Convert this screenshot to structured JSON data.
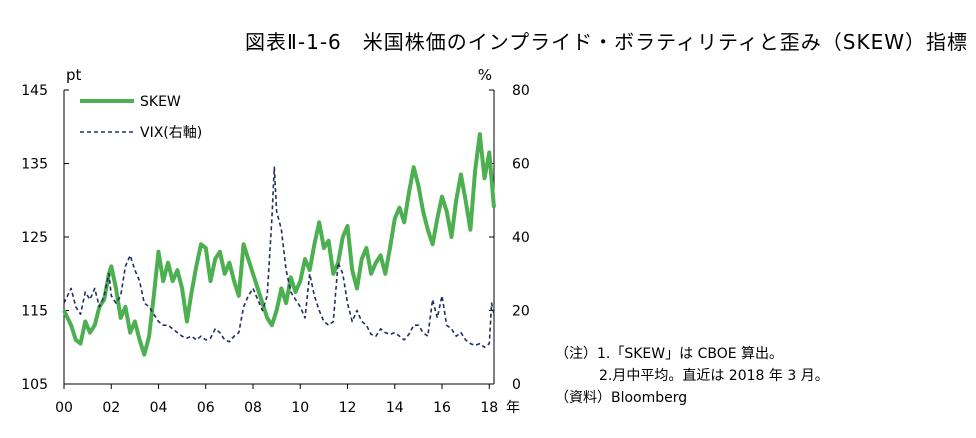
{
  "title": "図表Ⅱ-1-6　米国株価のインプライド・ボラティリティと歪み（SKEW）指標",
  "chart_data": {
    "type": "line",
    "title": "図表Ⅱ-1-6　米国株価のインプライド・ボラティリティと歪み（SKEW）指標",
    "left_unit": "pt",
    "right_unit": "%",
    "year_suffix": "年",
    "x_ticks": [
      "00",
      "02",
      "04",
      "06",
      "08",
      "10",
      "12",
      "14",
      "16",
      "18"
    ],
    "x_range": [
      2000,
      2018.2
    ],
    "y_left": {
      "range": [
        105,
        145
      ],
      "ticks": [
        105,
        115,
        125,
        135,
        145
      ]
    },
    "y_right": {
      "range": [
        0,
        80
      ],
      "ticks": [
        0,
        20,
        40,
        60,
        80
      ]
    },
    "colors": {
      "skew": "#4caf50",
      "vix": "#1f2f5f"
    },
    "series": [
      {
        "name": "SKEW",
        "axis": "left",
        "style": "solid",
        "points": [
          [
            2000.0,
            115.0
          ],
          [
            2000.3,
            113.0
          ],
          [
            2000.5,
            111.0
          ],
          [
            2000.7,
            110.5
          ],
          [
            2000.9,
            113.5
          ],
          [
            2001.1,
            112.0
          ],
          [
            2001.3,
            113.0
          ],
          [
            2001.5,
            115.5
          ],
          [
            2001.7,
            116.5
          ],
          [
            2001.9,
            120.0
          ],
          [
            2002.0,
            121.0
          ],
          [
            2002.2,
            118.0
          ],
          [
            2002.4,
            114.0
          ],
          [
            2002.6,
            115.5
          ],
          [
            2002.8,
            112.0
          ],
          [
            2003.0,
            113.5
          ],
          [
            2003.2,
            111.0
          ],
          [
            2003.4,
            109.0
          ],
          [
            2003.6,
            111.5
          ],
          [
            2003.8,
            117.0
          ],
          [
            2004.0,
            123.0
          ],
          [
            2004.2,
            119.0
          ],
          [
            2004.4,
            121.5
          ],
          [
            2004.6,
            119.0
          ],
          [
            2004.8,
            120.5
          ],
          [
            2005.0,
            118.0
          ],
          [
            2005.2,
            113.5
          ],
          [
            2005.4,
            117.5
          ],
          [
            2005.6,
            121.0
          ],
          [
            2005.8,
            124.0
          ],
          [
            2006.0,
            123.5
          ],
          [
            2006.2,
            119.0
          ],
          [
            2006.4,
            122.0
          ],
          [
            2006.6,
            123.0
          ],
          [
            2006.8,
            120.0
          ],
          [
            2007.0,
            121.5
          ],
          [
            2007.2,
            119.0
          ],
          [
            2007.4,
            117.0
          ],
          [
            2007.6,
            124.0
          ],
          [
            2007.8,
            122.0
          ],
          [
            2008.0,
            120.0
          ],
          [
            2008.2,
            118.0
          ],
          [
            2008.4,
            116.0
          ],
          [
            2008.6,
            114.0
          ],
          [
            2008.8,
            113.0
          ],
          [
            2009.0,
            115.0
          ],
          [
            2009.2,
            118.0
          ],
          [
            2009.4,
            116.0
          ],
          [
            2009.6,
            119.5
          ],
          [
            2009.8,
            117.5
          ],
          [
            2010.0,
            119.0
          ],
          [
            2010.2,
            122.0
          ],
          [
            2010.4,
            120.5
          ],
          [
            2010.6,
            124.0
          ],
          [
            2010.8,
            127.0
          ],
          [
            2011.0,
            123.5
          ],
          [
            2011.2,
            124.5
          ],
          [
            2011.4,
            120.0
          ],
          [
            2011.6,
            121.5
          ],
          [
            2011.8,
            125.0
          ],
          [
            2012.0,
            126.5
          ],
          [
            2012.2,
            120.5
          ],
          [
            2012.4,
            118.0
          ],
          [
            2012.6,
            122.0
          ],
          [
            2012.8,
            123.5
          ],
          [
            2013.0,
            120.0
          ],
          [
            2013.2,
            121.5
          ],
          [
            2013.4,
            122.5
          ],
          [
            2013.6,
            120.0
          ],
          [
            2013.8,
            123.5
          ],
          [
            2014.0,
            127.5
          ],
          [
            2014.2,
            129.0
          ],
          [
            2014.4,
            127.0
          ],
          [
            2014.6,
            131.0
          ],
          [
            2014.8,
            134.5
          ],
          [
            2015.0,
            132.0
          ],
          [
            2015.2,
            128.5
          ],
          [
            2015.4,
            126.0
          ],
          [
            2015.6,
            124.0
          ],
          [
            2015.8,
            127.5
          ],
          [
            2016.0,
            130.5
          ],
          [
            2016.2,
            128.5
          ],
          [
            2016.4,
            125.0
          ],
          [
            2016.6,
            130.0
          ],
          [
            2016.8,
            133.5
          ],
          [
            2017.0,
            130.0
          ],
          [
            2017.2,
            126.0
          ],
          [
            2017.4,
            134.0
          ],
          [
            2017.6,
            139.0
          ],
          [
            2017.8,
            133.0
          ],
          [
            2018.0,
            136.5
          ],
          [
            2018.2,
            129.0
          ]
        ]
      },
      {
        "name": "VIX(右軸)",
        "axis": "right",
        "style": "dashed",
        "points": [
          [
            2000.0,
            22.0
          ],
          [
            2000.3,
            26.0
          ],
          [
            2000.5,
            21.0
          ],
          [
            2000.7,
            19.0
          ],
          [
            2000.9,
            25.0
          ],
          [
            2001.1,
            23.0
          ],
          [
            2001.3,
            26.0
          ],
          [
            2001.5,
            21.0
          ],
          [
            2001.7,
            24.0
          ],
          [
            2001.9,
            30.0
          ],
          [
            2002.0,
            24.0
          ],
          [
            2002.2,
            22.0
          ],
          [
            2002.4,
            24.0
          ],
          [
            2002.6,
            32.0
          ],
          [
            2002.8,
            35.0
          ],
          [
            2003.0,
            31.0
          ],
          [
            2003.2,
            28.0
          ],
          [
            2003.4,
            22.0
          ],
          [
            2003.6,
            21.0
          ],
          [
            2003.8,
            19.0
          ],
          [
            2004.0,
            17.0
          ],
          [
            2004.2,
            16.0
          ],
          [
            2004.4,
            16.0
          ],
          [
            2004.6,
            15.0
          ],
          [
            2004.8,
            14.0
          ],
          [
            2005.0,
            13.0
          ],
          [
            2005.2,
            12.5
          ],
          [
            2005.4,
            13.0
          ],
          [
            2005.6,
            12.0
          ],
          [
            2005.8,
            13.0
          ],
          [
            2006.0,
            12.0
          ],
          [
            2006.2,
            12.5
          ],
          [
            2006.4,
            15.0
          ],
          [
            2006.6,
            14.0
          ],
          [
            2006.8,
            12.0
          ],
          [
            2007.0,
            11.5
          ],
          [
            2007.2,
            13.0
          ],
          [
            2007.4,
            14.0
          ],
          [
            2007.6,
            21.0
          ],
          [
            2007.8,
            24.0
          ],
          [
            2008.0,
            26.0
          ],
          [
            2008.2,
            23.0
          ],
          [
            2008.4,
            20.0
          ],
          [
            2008.6,
            24.0
          ],
          [
            2008.8,
            45.0
          ],
          [
            2008.9,
            59.0
          ],
          [
            2009.0,
            47.0
          ],
          [
            2009.2,
            42.0
          ],
          [
            2009.4,
            31.0
          ],
          [
            2009.6,
            25.0
          ],
          [
            2009.8,
            23.0
          ],
          [
            2010.0,
            21.0
          ],
          [
            2010.2,
            18.0
          ],
          [
            2010.4,
            30.0
          ],
          [
            2010.6,
            24.0
          ],
          [
            2010.8,
            20.0
          ],
          [
            2011.0,
            17.0
          ],
          [
            2011.2,
            16.0
          ],
          [
            2011.4,
            17.0
          ],
          [
            2011.6,
            33.0
          ],
          [
            2011.8,
            30.0
          ],
          [
            2012.0,
            22.0
          ],
          [
            2012.2,
            17.0
          ],
          [
            2012.4,
            20.0
          ],
          [
            2012.6,
            17.0
          ],
          [
            2012.8,
            16.0
          ],
          [
            2013.0,
            13.5
          ],
          [
            2013.2,
            13.0
          ],
          [
            2013.4,
            15.0
          ],
          [
            2013.6,
            14.0
          ],
          [
            2013.8,
            13.5
          ],
          [
            2014.0,
            14.0
          ],
          [
            2014.2,
            13.0
          ],
          [
            2014.4,
            12.0
          ],
          [
            2014.6,
            13.5
          ],
          [
            2014.8,
            16.0
          ],
          [
            2015.0,
            16.0
          ],
          [
            2015.2,
            14.0
          ],
          [
            2015.4,
            13.0
          ],
          [
            2015.6,
            23.0
          ],
          [
            2015.8,
            18.0
          ],
          [
            2016.0,
            24.0
          ],
          [
            2016.2,
            16.0
          ],
          [
            2016.4,
            15.0
          ],
          [
            2016.6,
            13.0
          ],
          [
            2016.8,
            14.0
          ],
          [
            2017.0,
            12.0
          ],
          [
            2017.2,
            11.0
          ],
          [
            2017.4,
            10.5
          ],
          [
            2017.6,
            11.0
          ],
          [
            2017.8,
            10.0
          ],
          [
            2018.0,
            11.0
          ],
          [
            2018.1,
            22.0
          ],
          [
            2018.2,
            19.0
          ]
        ]
      }
    ]
  },
  "notes": {
    "line1": "（注）1.「SKEW」は CBOE 算出。",
    "line2": "2.月中平均。直近は 2018 年 3 月。",
    "source": "（資料）Bloomberg"
  }
}
